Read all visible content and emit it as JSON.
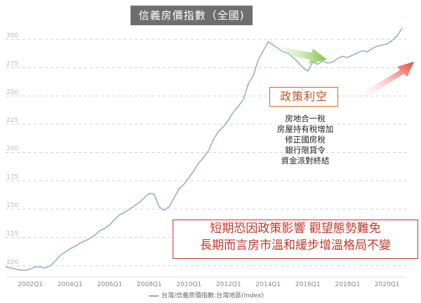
{
  "title": "信義房價指數（全國)",
  "policy": {
    "heading": "政策利空",
    "items": [
      "房地合一稅",
      "房屋持有稅增加",
      "修正國房稅",
      "銀行限貸令",
      "資金派對終結"
    ]
  },
  "summary": {
    "line1": "短期恐因政策影響 觀望態勢難免",
    "line2": "長期而言房市溫和緩步增溫格局不變"
  },
  "legend_label": "台灣/信義房價指數:台灣地區(Index)",
  "colors": {
    "line": "#8fa9cd",
    "arrow_down": "#7dc243",
    "arrow_up": "#e8413a",
    "summary": "#c0392b",
    "policy": "#c0531a"
  },
  "chart_data": {
    "type": "line",
    "title": "信義房價指數（全國)",
    "xlim": [
      2000.75,
      2021.0
    ],
    "ylim": [
      90,
      310
    ],
    "yticks": [
      100,
      125,
      150,
      175,
      200,
      225,
      250,
      275,
      300
    ],
    "xticks": [
      {
        "label": "2002Q1",
        "x": 2002.0
      },
      {
        "label": "2004Q1",
        "x": 2004.0
      },
      {
        "label": "2006Q1",
        "x": 2006.0
      },
      {
        "label": "2008Q1",
        "x": 2008.0
      },
      {
        "label": "2010Q1",
        "x": 2010.0
      },
      {
        "label": "2012Q1",
        "x": 2012.0
      },
      {
        "label": "2014Q1",
        "x": 2014.0
      },
      {
        "label": "2016Q1",
        "x": 2016.0
      },
      {
        "label": "2018Q1",
        "x": 2018.0
      },
      {
        "label": "2020Q1",
        "x": 2020.0
      }
    ],
    "grid": true,
    "series": [
      {
        "name": "台灣/信義房價指數:台灣地區(Index)",
        "x": [
          2000.75,
          2001.0,
          2001.25,
          2001.5,
          2001.75,
          2002.0,
          2002.25,
          2002.5,
          2002.75,
          2003.0,
          2003.25,
          2003.5,
          2003.75,
          2004.0,
          2004.25,
          2004.5,
          2004.75,
          2005.0,
          2005.25,
          2005.5,
          2005.75,
          2006.0,
          2006.25,
          2006.5,
          2006.75,
          2007.0,
          2007.25,
          2007.5,
          2007.75,
          2008.0,
          2008.25,
          2008.5,
          2008.75,
          2009.0,
          2009.25,
          2009.5,
          2009.75,
          2010.0,
          2010.25,
          2010.5,
          2010.75,
          2011.0,
          2011.25,
          2011.5,
          2011.75,
          2012.0,
          2012.25,
          2012.5,
          2012.75,
          2013.0,
          2013.25,
          2013.5,
          2013.75,
          2014.0,
          2014.25,
          2014.5,
          2014.75,
          2015.0,
          2015.25,
          2015.5,
          2015.75,
          2016.0,
          2016.25,
          2016.5,
          2016.75,
          2017.0,
          2017.25,
          2017.5,
          2017.75,
          2018.0,
          2018.25,
          2018.5,
          2018.75,
          2019.0,
          2019.25,
          2019.5,
          2019.75,
          2020.0,
          2020.25,
          2020.5,
          2020.75
        ],
        "values": [
          99,
          98,
          97,
          96,
          96,
          97,
          99,
          99,
          98,
          100,
          104,
          109,
          112,
          115,
          117,
          120,
          122,
          124,
          127,
          131,
          133,
          136,
          141,
          145,
          147,
          150,
          153,
          156,
          160,
          164,
          163,
          152,
          149,
          152,
          160,
          168,
          172,
          178,
          184,
          191,
          196,
          202,
          212,
          219,
          223,
          229,
          236,
          241,
          247,
          261,
          268,
          282,
          290,
          298,
          295,
          292,
          289,
          288,
          284,
          280,
          275,
          272,
          280,
          278,
          281,
          279,
          280,
          283,
          285,
          284,
          286,
          288,
          290,
          289,
          292,
          294,
          295,
          296,
          299,
          303,
          310
        ]
      }
    ]
  }
}
